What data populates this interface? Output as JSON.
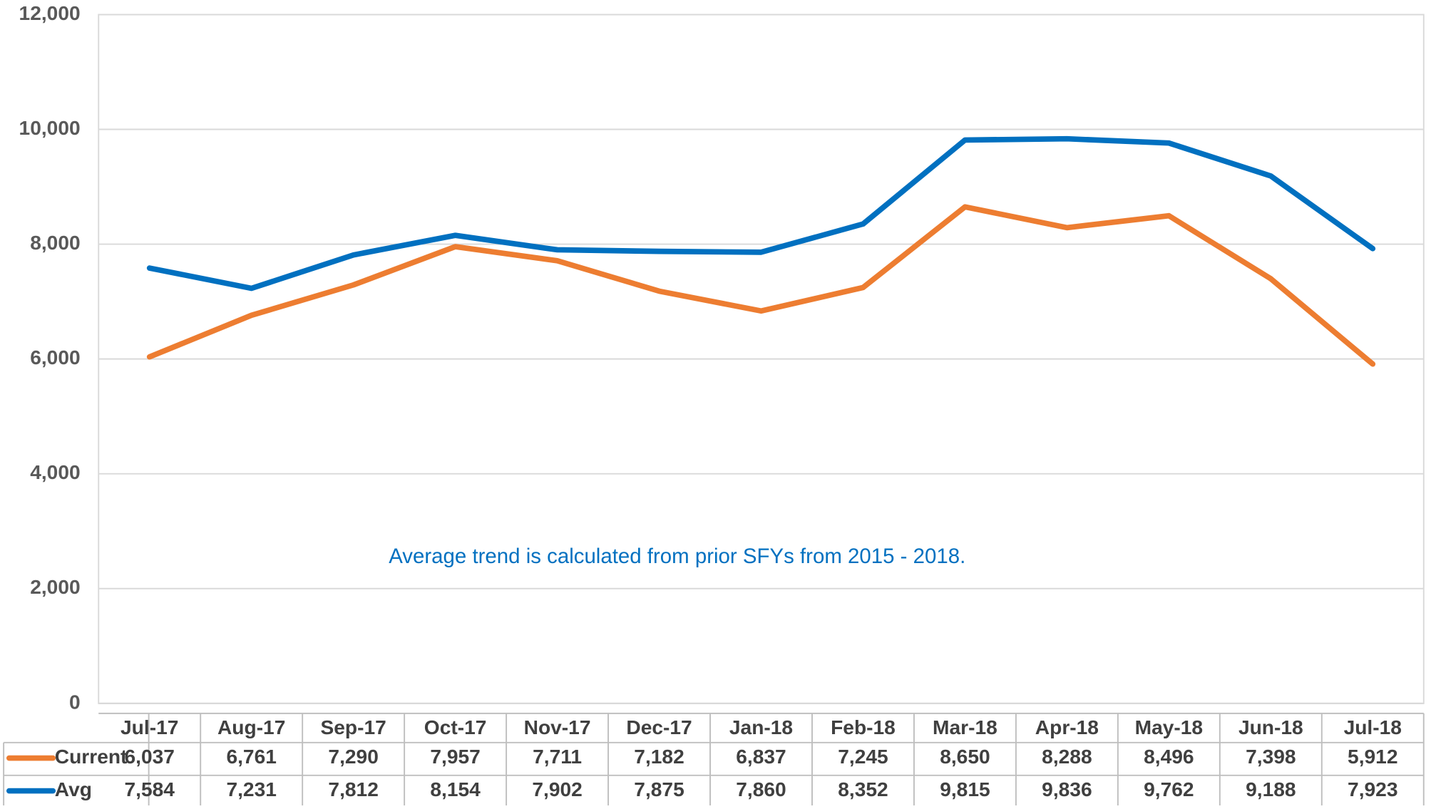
{
  "chart_data": {
    "type": "line",
    "categories": [
      "Jul-17",
      "Aug-17",
      "Sep-17",
      "Oct-17",
      "Nov-17",
      "Dec-17",
      "Jan-18",
      "Feb-18",
      "Mar-18",
      "Apr-18",
      "May-18",
      "Jun-18",
      "Jul-18"
    ],
    "series": [
      {
        "name": "Current",
        "color": "#ed7d31",
        "values": [
          6037,
          6761,
          7290,
          7957,
          7711,
          7182,
          6837,
          7245,
          8650,
          8288,
          8496,
          7398,
          5912
        ],
        "value_labels": [
          "6,037",
          "6,761",
          "7,290",
          "7,957",
          "7,711",
          "7,182",
          "6,837",
          "7,245",
          "8,650",
          "8,288",
          "8,496",
          "7,398",
          "5,912"
        ]
      },
      {
        "name": "Avg",
        "color": "#0070c0",
        "values": [
          7584,
          7231,
          7812,
          8154,
          7902,
          7875,
          7860,
          8352,
          9815,
          9836,
          9762,
          9188,
          7923
        ],
        "value_labels": [
          "7,584",
          "7,231",
          "7,812",
          "8,154",
          "7,902",
          "7,875",
          "7,860",
          "8,352",
          "9,815",
          "9,836",
          "9,762",
          "9,188",
          "7,923"
        ]
      }
    ],
    "ylim": [
      0,
      12000
    ],
    "yticks": [
      0,
      {
        "value": 2000,
        "label": "2,000"
      },
      {
        "value": 4000,
        "label": "4,000"
      },
      {
        "value": 6000,
        "label": "6,000"
      },
      {
        "value": 8000,
        "label": "8,000"
      },
      {
        "value": 10000,
        "label": "10,000"
      },
      {
        "value": 12000,
        "label": "12,000"
      }
    ],
    "grid": true,
    "annotation": "Average trend is calculated from prior SFYs from 2015 - 2018."
  }
}
